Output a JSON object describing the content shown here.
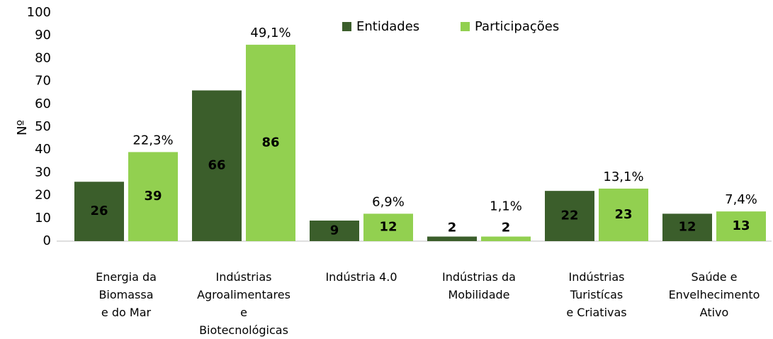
{
  "chart_data": {
    "type": "bar",
    "categories": [
      "Energia da\nBiomassa\ne do Mar",
      "Indústrias\nAgroalimentares\ne\nBiotecnológicas",
      "Indústria 4.0",
      "Indústrias da\nMobilidade",
      "Indústrias\nTuristícas\ne Criativas",
      "Saúde e\nEnvelhecimento\nAtivo"
    ],
    "series": [
      {
        "name": "Entidades",
        "color": "#3b5e2b",
        "values": [
          26,
          66,
          9,
          2,
          22,
          12
        ]
      },
      {
        "name": "Participações",
        "color": "#92d050",
        "values": [
          39,
          86,
          12,
          2,
          23,
          13
        ]
      }
    ],
    "annotations": [
      "22,3%",
      "49,1%",
      "6,9%",
      "1,1%",
      "13,1%",
      "7,4%"
    ],
    "y_label": "Nº",
    "ylim": [
      0,
      100
    ],
    "yticks": [
      0,
      10,
      20,
      30,
      40,
      50,
      60,
      70,
      80,
      90,
      100
    ],
    "grid": false,
    "legend": "top"
  }
}
